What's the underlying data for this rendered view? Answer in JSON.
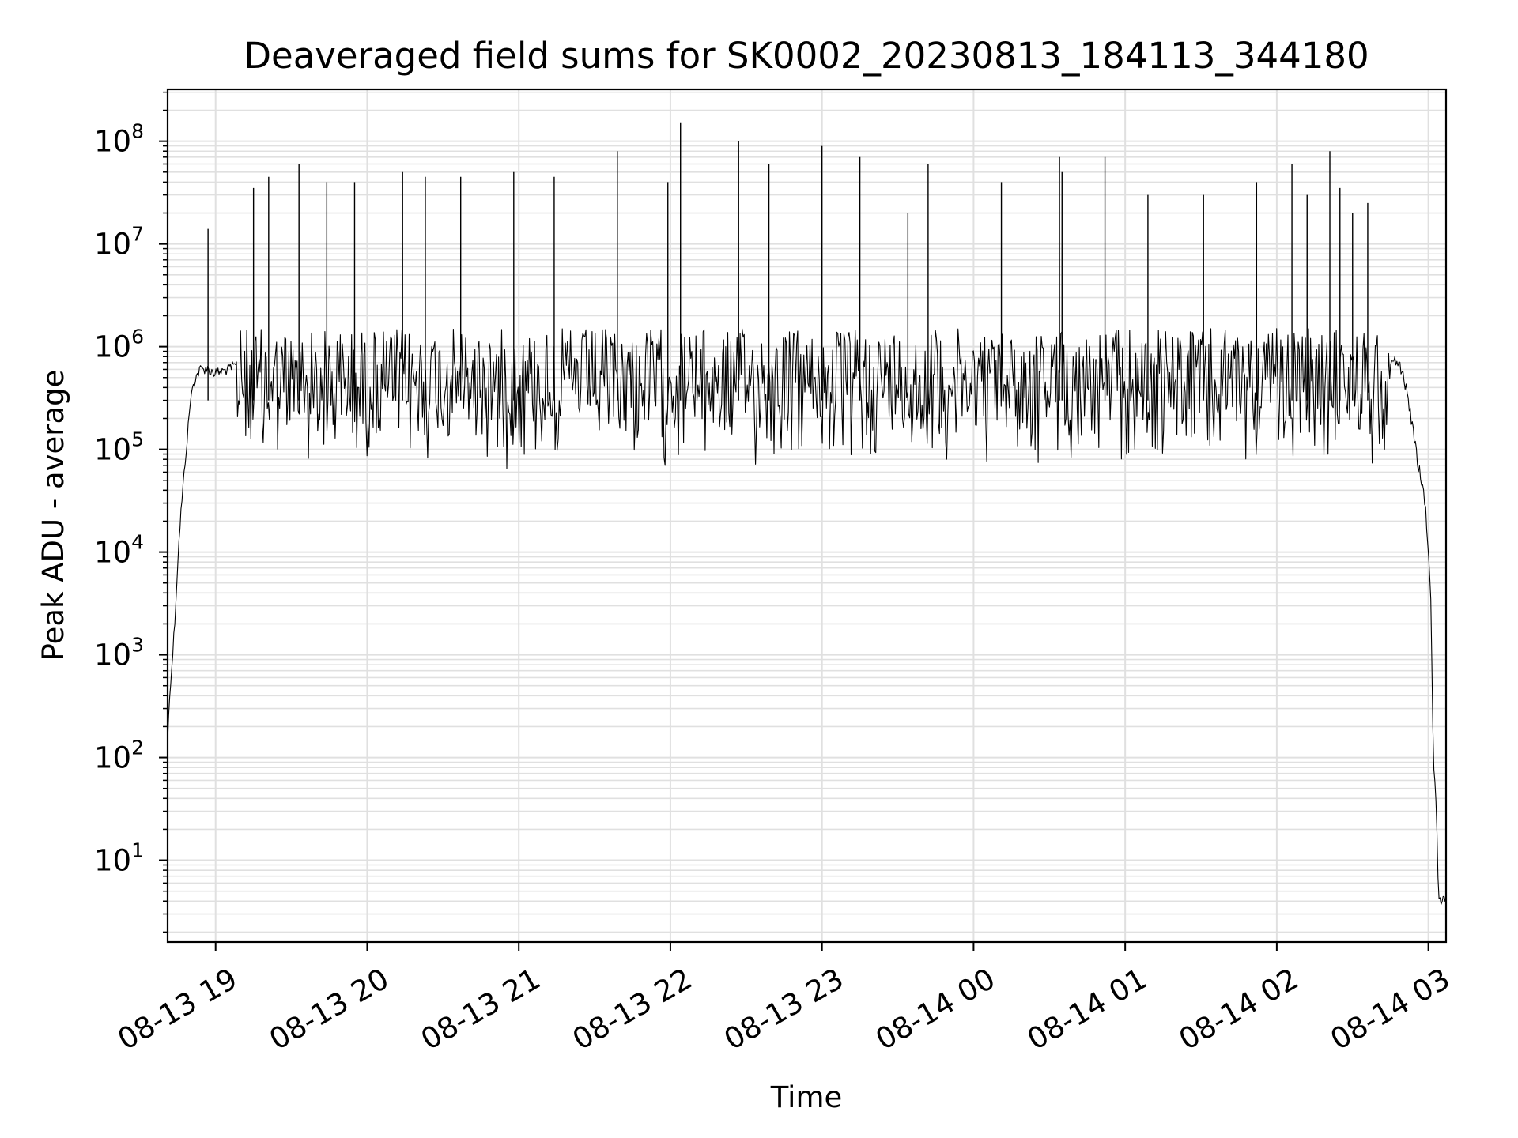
{
  "chart_data": {
    "type": "line",
    "title": "Deaveraged field sums for SK0002_20230813_184113_344180",
    "xlabel": "Time",
    "ylabel": "Peak ADU - average",
    "yscale": "log",
    "ylim": [
      1.6,
      320000000
    ],
    "xlim": [
      "2023-08-13 18:41",
      "2023-08-14 03:07"
    ],
    "grid": true,
    "line_color": "#000000",
    "grid_color": "#e0e0e0",
    "x_ticks": [
      {
        "value": "2023-08-13 19:00",
        "label": "08-13 19"
      },
      {
        "value": "2023-08-13 20:00",
        "label": "08-13 20"
      },
      {
        "value": "2023-08-13 21:00",
        "label": "08-13 21"
      },
      {
        "value": "2023-08-13 22:00",
        "label": "08-13 22"
      },
      {
        "value": "2023-08-13 23:00",
        "label": "08-13 23"
      },
      {
        "value": "2023-08-14 00:00",
        "label": "08-14 00"
      },
      {
        "value": "2023-08-14 01:00",
        "label": "08-14 01"
      },
      {
        "value": "2023-08-14 02:00",
        "label": "08-14 02"
      },
      {
        "value": "2023-08-14 03:00",
        "label": "08-14 03"
      }
    ],
    "y_ticks": [
      {
        "value": 10,
        "base": "10",
        "exp": "1"
      },
      {
        "value": 100,
        "base": "10",
        "exp": "2"
      },
      {
        "value": 1000,
        "base": "10",
        "exp": "3"
      },
      {
        "value": 10000,
        "base": "10",
        "exp": "4"
      },
      {
        "value": 100000,
        "base": "10",
        "exp": "5"
      },
      {
        "value": 1000000,
        "base": "10",
        "exp": "6"
      },
      {
        "value": 10000000,
        "base": "10",
        "exp": "7"
      },
      {
        "value": 100000000,
        "base": "10",
        "exp": "8"
      }
    ],
    "series": [
      {
        "x": [
          "2023-08-13 18:41",
          "2023-08-13 18:42",
          "2023-08-13 18:43",
          "2023-08-13 18:44",
          "2023-08-13 18:45",
          "2023-08-13 18:46",
          "2023-08-13 18:47",
          "2023-08-13 18:48",
          "2023-08-13 18:49",
          "2023-08-13 18:50",
          "2023-08-13 18:51",
          "2023-08-13 18:52",
          "2023-08-13 18:53",
          "2023-08-13 18:54",
          "2023-08-13 18:55",
          "2023-08-13 18:56",
          "2023-08-13 18:57",
          "2023-08-13 18:58",
          "2023-08-13 19:00",
          "2023-08-13 19:05",
          "2023-08-13 19:10",
          "2023-08-13 19:15",
          "2023-08-13 19:20",
          "2023-08-13 19:30",
          "2023-08-13 19:40",
          "2023-08-13 19:50",
          "2023-08-13 20:00",
          "2023-08-13 20:15",
          "2023-08-13 20:30",
          "2023-08-13 20:45",
          "2023-08-13 21:00",
          "2023-08-13 21:15",
          "2023-08-13 21:30",
          "2023-08-13 21:45",
          "2023-08-13 22:00",
          "2023-08-13 22:15",
          "2023-08-13 22:30",
          "2023-08-13 22:45",
          "2023-08-13 23:00",
          "2023-08-13 23:15",
          "2023-08-13 23:30",
          "2023-08-13 23:45",
          "2023-08-14 00:00",
          "2023-08-14 00:15",
          "2023-08-14 00:30",
          "2023-08-14 00:45",
          "2023-08-14 01:00",
          "2023-08-14 01:15",
          "2023-08-14 01:30",
          "2023-08-14 01:45",
          "2023-08-14 02:00",
          "2023-08-14 02:15",
          "2023-08-14 02:30",
          "2023-08-14 02:40",
          "2023-08-14 02:45",
          "2023-08-14 02:48",
          "2023-08-14 02:50",
          "2023-08-14 02:52",
          "2023-08-14 02:54",
          "2023-08-14 02:56",
          "2023-08-14 02:58",
          "2023-08-14 02:59",
          "2023-08-14 03:00",
          "2023-08-14 03:01",
          "2023-08-14 03:02",
          "2023-08-14 03:03",
          "2023-08-14 03:04",
          "2023-08-14 03:05",
          "2023-08-14 03:06",
          "2023-08-14 03:07"
        ],
        "y": [
          150,
          500,
          1000,
          2500,
          8000,
          20000,
          40000,
          80000,
          150000,
          300000,
          400000,
          500000,
          550000,
          600000,
          600000,
          620000,
          600000,
          580000,
          550000,
          600000,
          700000,
          900000,
          1000000,
          1100000,
          1000000,
          700000,
          400000,
          250000,
          150000,
          120000,
          150000,
          250000,
          200000,
          220000,
          250000,
          200000,
          300000,
          500000,
          700000,
          600000,
          500000,
          300000,
          250000,
          300000,
          500000,
          600000,
          700000,
          650000,
          800000,
          700000,
          900000,
          700000,
          600000,
          700000,
          750000,
          700000,
          550000,
          300000,
          150000,
          70000,
          40000,
          25000,
          10000,
          3000,
          100,
          40,
          5,
          4,
          4,
          4
        ]
      }
    ],
    "spikes": {
      "x": [
        "2023-08-13 18:57",
        "2023-08-13 19:15",
        "2023-08-13 19:21",
        "2023-08-13 19:33",
        "2023-08-13 19:44",
        "2023-08-13 19:55",
        "2023-08-13 20:14",
        "2023-08-13 20:23",
        "2023-08-13 20:37",
        "2023-08-13 20:58",
        "2023-08-13 21:14",
        "2023-08-13 21:39",
        "2023-08-13 21:59",
        "2023-08-13 22:04",
        "2023-08-13 22:27",
        "2023-08-13 22:39",
        "2023-08-13 23:00",
        "2023-08-13 23:15",
        "2023-08-13 23:34",
        "2023-08-13 23:42",
        "2023-08-14 00:11",
        "2023-08-14 00:34",
        "2023-08-14 00:35",
        "2023-08-14 00:52",
        "2023-08-14 01:09",
        "2023-08-14 01:31",
        "2023-08-14 01:52",
        "2023-08-14 02:06",
        "2023-08-14 02:12",
        "2023-08-14 02:21",
        "2023-08-14 02:25",
        "2023-08-14 02:30",
        "2023-08-14 02:36"
      ],
      "y": [
        14000000,
        35000000,
        45000000,
        60000000,
        40000000,
        40000000,
        50000000,
        45000000,
        45000000,
        50000000,
        45000000,
        80000000,
        40000000,
        150000000,
        100000000,
        60000000,
        90000000,
        70000000,
        20000000,
        60000000,
        40000000,
        70000000,
        50000000,
        70000000,
        30000000,
        30000000,
        40000000,
        60000000,
        30000000,
        80000000,
        35000000,
        20000000,
        25000000
      ]
    }
  }
}
